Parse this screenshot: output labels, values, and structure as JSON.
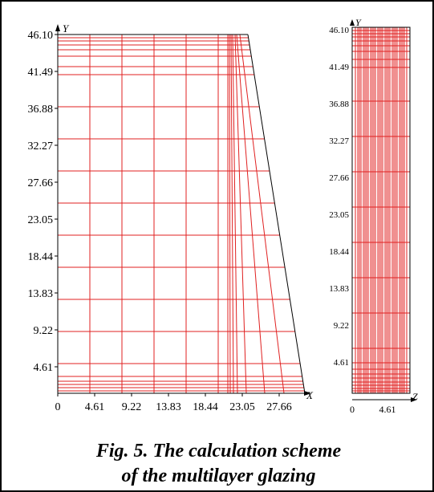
{
  "colors": {
    "mesh": "#e02020",
    "outline": "#000000",
    "background": "#ffffff"
  },
  "left_view": {
    "y_axis_label": "Y",
    "x_axis_label": "X",
    "y_ticks": [
      "46.10",
      "41.49",
      "36.88",
      "32.27",
      "27.66",
      "23.05",
      "18.44",
      "13.83",
      "9.22",
      "4.61"
    ],
    "x_ticks": [
      "0",
      "4.61",
      "9.22",
      "13.83",
      "18.44",
      "23.05",
      "27.66"
    ]
  },
  "right_view": {
    "y_axis_label": "Y",
    "z_axis_label": "Z",
    "y_ticks": [
      "46.10",
      "41.49",
      "36.88",
      "32.27",
      "27.66",
      "23.05",
      "18.44",
      "13.83",
      "9.22",
      "4.61"
    ],
    "z_ticks": [
      "0",
      "4.61"
    ]
  },
  "caption": {
    "line1": "Fig. 5. The calculation scheme",
    "line2": "of the multilayer glazing"
  }
}
